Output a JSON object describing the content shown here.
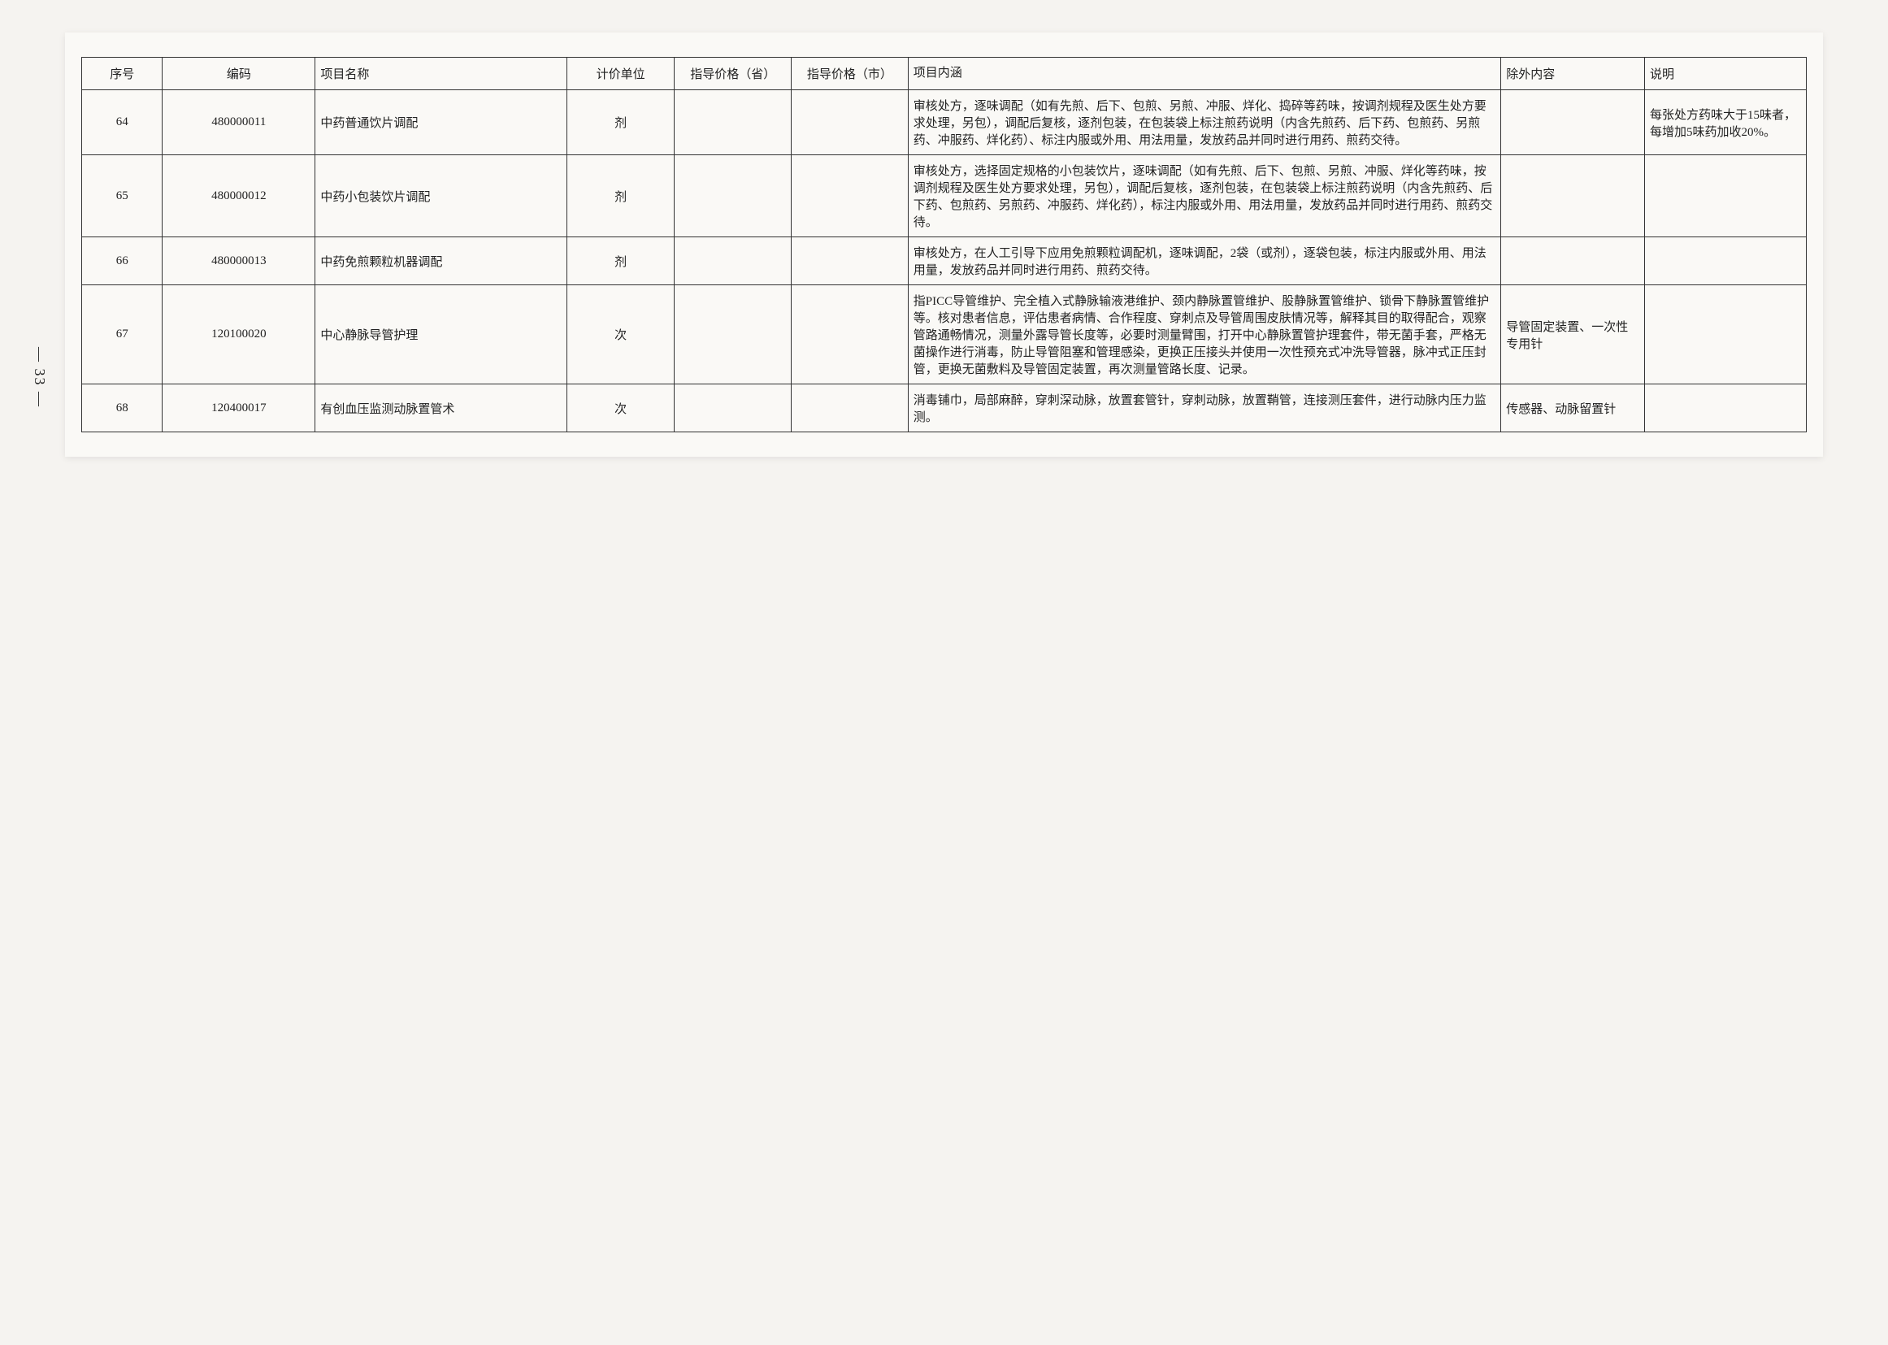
{
  "page_number": "— 33 —",
  "headers": {
    "seq": "序号",
    "code": "编码",
    "name": "项目名称",
    "unit": "计价单位",
    "price_prov": "指导价格（省）",
    "price_city": "指导价格（市）",
    "desc": "项目内涵",
    "excl": "除外内容",
    "note": "说明"
  },
  "rows": [
    {
      "seq": "64",
      "code": "480000011",
      "name": "中药普通饮片调配",
      "unit": "剂",
      "price_prov": "",
      "price_city": "",
      "desc": "审核处方，逐味调配（如有先煎、后下、包煎、另煎、冲服、烊化、捣碎等药味，按调剂规程及医生处方要求处理，另包），调配后复核，逐剂包装，在包装袋上标注煎药说明（内含先煎药、后下药、包煎药、另煎药、冲服药、烊化药）、标注内服或外用、用法用量，发放药品并同时进行用药、煎药交待。",
      "excl": "",
      "note": "每张处方药味大于15味者，每增加5味药加收20%。"
    },
    {
      "seq": "65",
      "code": "480000012",
      "name": "中药小包装饮片调配",
      "unit": "剂",
      "price_prov": "",
      "price_city": "",
      "desc": "审核处方，选择固定规格的小包装饮片，逐味调配（如有先煎、后下、包煎、另煎、冲服、烊化等药味，按调剂规程及医生处方要求处理，另包），调配后复核，逐剂包装，在包装袋上标注煎药说明（内含先煎药、后下药、包煎药、另煎药、冲服药、烊化药），标注内服或外用、用法用量，发放药品并同时进行用药、煎药交待。",
      "excl": "",
      "note": ""
    },
    {
      "seq": "66",
      "code": "480000013",
      "name": "中药免煎颗粒机器调配",
      "unit": "剂",
      "price_prov": "",
      "price_city": "",
      "desc": "审核处方，在人工引导下应用免煎颗粒调配机，逐味调配，2袋（或剂），逐袋包装，标注内服或外用、用法用量，发放药品并同时进行用药、煎药交待。",
      "excl": "",
      "note": ""
    },
    {
      "seq": "67",
      "code": "120100020",
      "name": "中心静脉导管护理",
      "unit": "次",
      "price_prov": "",
      "price_city": "",
      "desc": "指PICC导管维护、完全植入式静脉输液港维护、颈内静脉置管维护、股静脉置管维护、锁骨下静脉置管维护等。核对患者信息，评估患者病情、合作程度、穿刺点及导管周围皮肤情况等，解释其目的取得配合，观察管路通畅情况，测量外露导管长度等，必要时测量臂围，打开中心静脉置管护理套件，带无菌手套，严格无菌操作进行消毒，防止导管阻塞和管理感染，更换正压接头并使用一次性预充式冲洗导管器，脉冲式正压封管，更换无菌敷料及导管固定装置，再次测量管路长度、记录。",
      "excl": "导管固定装置、一次性专用针",
      "note": ""
    },
    {
      "seq": "68",
      "code": "120400017",
      "name": "有创血压监测动脉置管术",
      "unit": "次",
      "price_prov": "",
      "price_city": "",
      "desc": "消毒铺巾，局部麻醉，穿刺深动脉，放置套管针，穿刺动脉，放置鞘管，连接测压套件，进行动脉内压力监测。",
      "excl": "传感器、动脉留置针",
      "note": ""
    }
  ]
}
